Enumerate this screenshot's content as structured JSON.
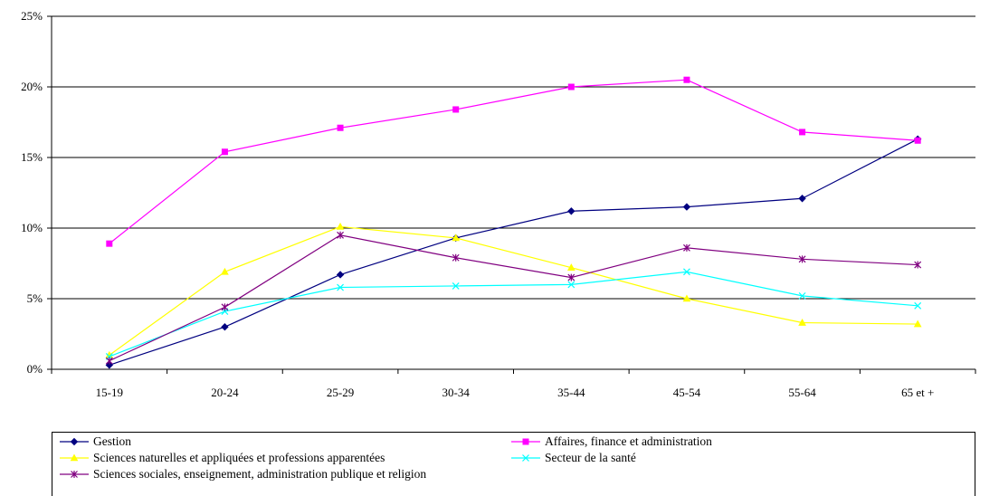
{
  "chart_data": {
    "type": "line",
    "title": "",
    "xlabel": "",
    "ylabel": "",
    "categories": [
      "15-19",
      "20-24",
      "25-29",
      "30-34",
      "35-44",
      "45-54",
      "55-64",
      "65 et +"
    ],
    "y_ticks": [
      "0%",
      "5%",
      "10%",
      "15%",
      "20%",
      "25%"
    ],
    "ylim": [
      0,
      25
    ],
    "grid": "horizontal",
    "legend_position": "bottom",
    "series": [
      {
        "name": "Gestion",
        "color": "#000080",
        "marker": "diamond",
        "values": [
          0.3,
          3.0,
          6.7,
          9.3,
          11.2,
          11.5,
          12.1,
          16.3
        ]
      },
      {
        "name": "Affaires, finance et administration",
        "color": "#ff00ff",
        "marker": "square",
        "values": [
          8.9,
          15.4,
          17.1,
          18.4,
          20.0,
          20.5,
          16.8,
          16.2
        ]
      },
      {
        "name": "Sciences naturelles et appliquées et professions apparentées",
        "color": "#ffff00",
        "marker": "triangle",
        "values": [
          1.0,
          6.9,
          10.1,
          9.3,
          7.2,
          5.0,
          3.3,
          3.2
        ]
      },
      {
        "name": "Secteur de la santé",
        "color": "#00ffff",
        "marker": "x",
        "values": [
          0.9,
          4.1,
          5.8,
          5.9,
          6.0,
          6.9,
          5.2,
          4.5
        ]
      },
      {
        "name": "Sciences sociales, enseignement, administration publique et religion",
        "color": "#800080",
        "marker": "star",
        "values": [
          0.6,
          4.4,
          9.5,
          7.9,
          6.5,
          8.6,
          7.8,
          7.4
        ]
      }
    ]
  }
}
